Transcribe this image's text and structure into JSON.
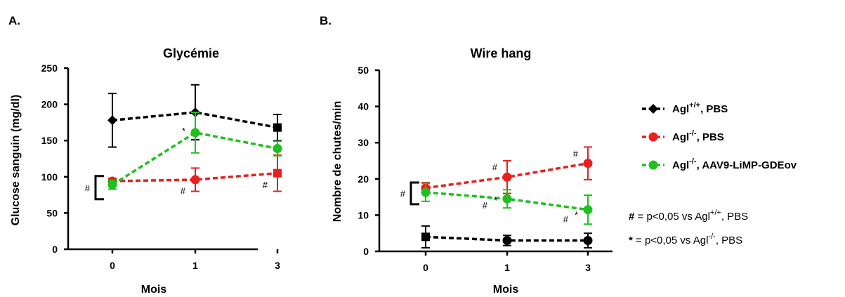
{
  "panels": [
    {
      "label": "A.",
      "chart_data": {
        "type": "line",
        "title": "Glycémie",
        "xlabel": "Mois",
        "ylabel": "Glucose sanguin (mg/dl)",
        "categories": [
          "0",
          "1",
          "3"
        ],
        "ylim": [
          0,
          250
        ],
        "yticks": [
          0,
          50,
          100,
          150,
          200,
          250
        ],
        "grid": false,
        "series": [
          {
            "key": "wt",
            "color": "#000000",
            "values": [
              178,
              189,
              168
            ],
            "errors": [
              37,
              38,
              18
            ],
            "markers": [
              "diamond",
              "diamond",
              "square"
            ]
          },
          {
            "key": "ko",
            "color": "#e8201e",
            "values": [
              94,
              96,
              105
            ],
            "errors": [
              4,
              16,
              25
            ],
            "markers": [
              "circle",
              "circle",
              "square"
            ]
          },
          {
            "key": "gene",
            "color": "#1fc01f",
            "values": [
              89,
              161,
              139
            ],
            "errors": [
              6,
              28,
              10
            ],
            "markers": [
              "circle",
              "circle",
              "circle"
            ]
          }
        ],
        "annotations": [
          {
            "text": "*",
            "x": "1",
            "y": 163,
            "side": "left"
          },
          {
            "text": "#",
            "x": "1",
            "y": 80,
            "side": "left"
          },
          {
            "text": "#",
            "x": "3",
            "y": 88,
            "side": "left"
          }
        ],
        "bracket": {
          "text": "#",
          "y_top": 101,
          "y_bottom": 69
        }
      }
    },
    {
      "label": "B.",
      "chart_data": {
        "type": "line",
        "title": "Wire hang",
        "xlabel": "Mois",
        "ylabel": "Nombre de chutes/min",
        "categories": [
          "0",
          "1",
          "3"
        ],
        "ylim": [
          0,
          50
        ],
        "yticks": [
          0,
          10,
          20,
          30,
          40,
          50
        ],
        "grid": false,
        "series": [
          {
            "key": "wt",
            "color": "#000000",
            "values": [
              4,
              3,
              3
            ],
            "errors": [
              3,
              1.4,
              2
            ],
            "markers": [
              "square",
              "circle",
              "circle"
            ]
          },
          {
            "key": "ko",
            "color": "#e8201e",
            "values": [
              17.5,
              20.5,
              24.3
            ],
            "errors": [
              1.5,
              4.5,
              4.5
            ],
            "markers": [
              "circle",
              "circle",
              "circle"
            ]
          },
          {
            "key": "gene",
            "color": "#1fc01f",
            "values": [
              16.3,
              14.5,
              11.5
            ],
            "errors": [
              2.5,
              2.5,
              4
            ],
            "markers": [
              "circle",
              "circle",
              "circle"
            ]
          }
        ],
        "annotations": [
          {
            "text": "#",
            "x": "1",
            "y": 23.2,
            "side": "left"
          },
          {
            "text": "#",
            "x": "3",
            "y": 26.8,
            "side": "left"
          },
          {
            "text": "#",
            "x": "1",
            "y": 12.6,
            "side": "left",
            "offset": 2
          },
          {
            "text": "*",
            "x": "1",
            "y": 14,
            "side": "left"
          },
          {
            "text": "#",
            "x": "3",
            "y": 8.8,
            "side": "left",
            "offset": 2
          },
          {
            "text": "*",
            "x": "3",
            "y": 10,
            "side": "left"
          }
        ],
        "bracket": {
          "text": "#",
          "y_top": 19,
          "y_bottom": 13
        }
      }
    }
  ],
  "legend": {
    "position": "right",
    "items": [
      {
        "key": "wt",
        "color": "#000000",
        "marker": "diamond",
        "base": "Agl",
        "sup": "+/+",
        "rest": ", PBS"
      },
      {
        "key": "ko",
        "color": "#e8201e",
        "marker": "circle",
        "base": "Agl",
        "sup": "-/-",
        "rest": ", PBS"
      },
      {
        "key": "gene",
        "color": "#1fc01f",
        "marker": "circle",
        "base": "Agl",
        "sup": "-/-",
        "rest": ", AAV9-LiMP-GDEov"
      }
    ]
  },
  "footnotes": [
    {
      "symbol": "#",
      "text": " = p<0,05 vs Agl",
      "sup": "+/+",
      "rest": ", PBS"
    },
    {
      "symbol": "*",
      "text": " = p<0,05 vs Agl",
      "sup": "-/-",
      "rest": ", PBS"
    }
  ]
}
